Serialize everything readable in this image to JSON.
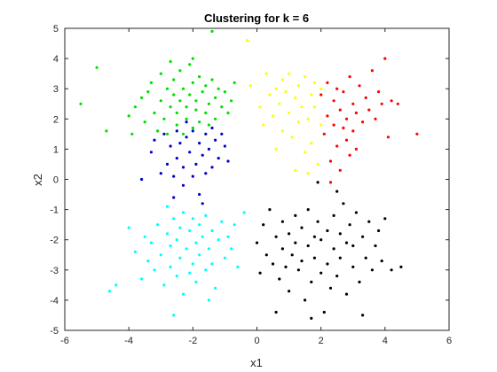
{
  "chart_data": {
    "type": "scatter",
    "title": "Clustering for k = 6",
    "xlabel": "x1",
    "ylabel": "x2",
    "xlim": [
      -6,
      6
    ],
    "ylim": [
      -5,
      5
    ],
    "xticks": [
      "-6",
      "-4",
      "-2",
      "0",
      "2",
      "4",
      "6"
    ],
    "yticks": [
      "-5",
      "-4",
      "-3",
      "-2",
      "-1",
      "0",
      "1",
      "2",
      "3",
      "4",
      "5"
    ],
    "grid": false,
    "legend": "none",
    "series": [
      {
        "color": "#00dd00",
        "points": [
          [
            -5.5,
            2.5
          ],
          [
            -5.0,
            3.7
          ],
          [
            -4.7,
            1.6
          ],
          [
            -4.0,
            2.1
          ],
          [
            -3.8,
            2.4
          ],
          [
            -3.6,
            2.7
          ],
          [
            -3.5,
            1.9
          ],
          [
            -3.4,
            2.9
          ],
          [
            -3.3,
            3.2
          ],
          [
            -3.2,
            2.2
          ],
          [
            -3.1,
            1.6
          ],
          [
            -3.0,
            2.6
          ],
          [
            -3.0,
            3.5
          ],
          [
            -2.9,
            2.0
          ],
          [
            -2.8,
            3.0
          ],
          [
            -2.8,
            1.5
          ],
          [
            -2.7,
            2.4
          ],
          [
            -2.6,
            3.3
          ],
          [
            -2.6,
            2.8
          ],
          [
            -2.5,
            1.8
          ],
          [
            -2.5,
            2.2
          ],
          [
            -2.4,
            3.6
          ],
          [
            -2.4,
            2.6
          ],
          [
            -2.3,
            1.5
          ],
          [
            -2.3,
            3.0
          ],
          [
            -2.2,
            2.0
          ],
          [
            -2.2,
            2.4
          ],
          [
            -2.1,
            3.8
          ],
          [
            -2.1,
            2.8
          ],
          [
            -2.0,
            1.7
          ],
          [
            -2.0,
            3.2
          ],
          [
            -1.9,
            2.3
          ],
          [
            -1.9,
            2.6
          ],
          [
            -1.8,
            3.4
          ],
          [
            -1.8,
            1.9
          ],
          [
            -1.7,
            2.9
          ],
          [
            -1.6,
            2.2
          ],
          [
            -1.6,
            3.1
          ],
          [
            -1.5,
            2.5
          ],
          [
            -1.5,
            1.8
          ],
          [
            -1.4,
            3.3
          ],
          [
            -1.3,
            2.0
          ],
          [
            -1.3,
            2.7
          ],
          [
            -1.2,
            3.0
          ],
          [
            -1.1,
            2.4
          ],
          [
            -1.0,
            2.9
          ],
          [
            -0.9,
            2.2
          ],
          [
            -0.8,
            2.6
          ],
          [
            -0.7,
            3.2
          ],
          [
            -2.7,
            3.9
          ],
          [
            -3.9,
            1.5
          ],
          [
            -2.0,
            4.0
          ],
          [
            -1.4,
            4.9
          ]
        ]
      },
      {
        "color": "#0000cc",
        "points": [
          [
            -3.3,
            0.9
          ],
          [
            -3.2,
            1.3
          ],
          [
            -3.0,
            0.2
          ],
          [
            -2.9,
            1.5
          ],
          [
            -2.8,
            0.5
          ],
          [
            -2.7,
            1.1
          ],
          [
            -2.6,
            0.1
          ],
          [
            -2.5,
            1.6
          ],
          [
            -2.5,
            0.7
          ],
          [
            -2.4,
            1.2
          ],
          [
            -2.3,
            -0.2
          ],
          [
            -2.3,
            0.4
          ],
          [
            -2.2,
            1.4
          ],
          [
            -2.1,
            0.9
          ],
          [
            -2.0,
            0.1
          ],
          [
            -2.0,
            1.6
          ],
          [
            -1.9,
            0.5
          ],
          [
            -1.8,
            1.2
          ],
          [
            -1.8,
            -0.5
          ],
          [
            -1.7,
            0.8
          ],
          [
            -1.6,
            1.5
          ],
          [
            -1.6,
            0.2
          ],
          [
            -1.5,
            1.0
          ],
          [
            -1.4,
            1.7
          ],
          [
            -1.4,
            0.4
          ],
          [
            -1.3,
            1.3
          ],
          [
            -1.2,
            0.7
          ],
          [
            -1.1,
            1.5
          ],
          [
            -1.0,
            1.1
          ],
          [
            -0.9,
            0.6
          ],
          [
            -2.6,
            -0.6
          ],
          [
            -1.7,
            -0.8
          ],
          [
            -3.6,
            0.0
          ],
          [
            -2.2,
            1.9
          ]
        ]
      },
      {
        "color": "#ffff00",
        "points": [
          [
            -0.3,
            4.6
          ],
          [
            -0.2,
            3.1
          ],
          [
            0.1,
            2.4
          ],
          [
            0.2,
            1.8
          ],
          [
            0.3,
            3.5
          ],
          [
            0.4,
            2.8
          ],
          [
            0.5,
            2.1
          ],
          [
            0.6,
            3.0
          ],
          [
            0.7,
            2.5
          ],
          [
            0.8,
            3.3
          ],
          [
            0.8,
            1.6
          ],
          [
            0.9,
            2.9
          ],
          [
            1.0,
            2.2
          ],
          [
            1.0,
            3.5
          ],
          [
            1.1,
            1.4
          ],
          [
            1.2,
            2.7
          ],
          [
            1.3,
            3.1
          ],
          [
            1.3,
            1.9
          ],
          [
            1.4,
            2.4
          ],
          [
            1.5,
            0.9
          ],
          [
            1.5,
            3.4
          ],
          [
            1.6,
            2.0
          ],
          [
            1.7,
            2.8
          ],
          [
            1.7,
            1.2
          ],
          [
            1.8,
            3.2
          ],
          [
            1.8,
            2.4
          ],
          [
            1.9,
            0.5
          ],
          [
            2.0,
            1.8
          ],
          [
            2.0,
            3.0
          ],
          [
            1.2,
            0.3
          ],
          [
            0.6,
            1.0
          ],
          [
            1.6,
            0.2
          ]
        ]
      },
      {
        "color": "#ff0000",
        "points": [
          [
            2.0,
            2.8
          ],
          [
            2.1,
            1.5
          ],
          [
            2.2,
            3.2
          ],
          [
            2.2,
            2.1
          ],
          [
            2.3,
            0.6
          ],
          [
            2.4,
            2.6
          ],
          [
            2.4,
            1.8
          ],
          [
            2.5,
            3.0
          ],
          [
            2.5,
            1.1
          ],
          [
            2.6,
            2.3
          ],
          [
            2.6,
            0.3
          ],
          [
            2.7,
            1.7
          ],
          [
            2.7,
            2.9
          ],
          [
            2.8,
            1.3
          ],
          [
            2.8,
            2.0
          ],
          [
            2.9,
            3.4
          ],
          [
            2.9,
            0.8
          ],
          [
            3.0,
            2.5
          ],
          [
            3.0,
            1.6
          ],
          [
            3.1,
            2.2
          ],
          [
            3.2,
            3.1
          ],
          [
            3.3,
            1.9
          ],
          [
            3.4,
            2.7
          ],
          [
            3.5,
            2.3
          ],
          [
            3.6,
            3.6
          ],
          [
            3.7,
            2.0
          ],
          [
            3.8,
            2.9
          ],
          [
            3.9,
            2.5
          ],
          [
            4.0,
            4.0
          ],
          [
            4.1,
            1.4
          ],
          [
            4.2,
            2.6
          ],
          [
            4.4,
            2.5
          ],
          [
            5.0,
            1.5
          ],
          [
            2.3,
            -0.1
          ],
          [
            3.1,
            1.0
          ]
        ]
      },
      {
        "color": "#00ffff",
        "points": [
          [
            -4.6,
            -3.7
          ],
          [
            -4.4,
            -3.5
          ],
          [
            -4.0,
            -1.6
          ],
          [
            -3.8,
            -2.4
          ],
          [
            -3.6,
            -3.3
          ],
          [
            -3.5,
            -1.9
          ],
          [
            -3.4,
            -2.7
          ],
          [
            -3.3,
            -2.1
          ],
          [
            -3.2,
            -3.0
          ],
          [
            -3.1,
            -1.5
          ],
          [
            -3.0,
            -2.5
          ],
          [
            -2.9,
            -3.5
          ],
          [
            -2.8,
            -1.8
          ],
          [
            -2.7,
            -2.2
          ],
          [
            -2.7,
            -2.9
          ],
          [
            -2.6,
            -1.3
          ],
          [
            -2.5,
            -3.2
          ],
          [
            -2.5,
            -2.0
          ],
          [
            -2.4,
            -1.6
          ],
          [
            -2.4,
            -2.6
          ],
          [
            -2.3,
            -3.8
          ],
          [
            -2.3,
            -1.1
          ],
          [
            -2.2,
            -2.3
          ],
          [
            -2.1,
            -3.1
          ],
          [
            -2.1,
            -1.7
          ],
          [
            -2.0,
            -2.8
          ],
          [
            -2.0,
            -1.3
          ],
          [
            -1.9,
            -2.1
          ],
          [
            -1.9,
            -3.4
          ],
          [
            -1.8,
            -1.5
          ],
          [
            -1.8,
            -2.5
          ],
          [
            -1.7,
            -1.9
          ],
          [
            -1.6,
            -3.0
          ],
          [
            -1.6,
            -1.2
          ],
          [
            -1.5,
            -2.3
          ],
          [
            -1.4,
            -1.7
          ],
          [
            -1.4,
            -2.8
          ],
          [
            -1.3,
            -3.6
          ],
          [
            -1.2,
            -2.0
          ],
          [
            -1.1,
            -1.4
          ],
          [
            -1.0,
            -2.6
          ],
          [
            -0.9,
            -1.9
          ],
          [
            -0.8,
            -2.3
          ],
          [
            -0.7,
            -1.5
          ],
          [
            -0.6,
            -2.9
          ],
          [
            -2.6,
            -4.5
          ],
          [
            -1.5,
            -4.0
          ],
          [
            -0.4,
            -1.1
          ],
          [
            -2.8,
            -0.9
          ]
        ]
      },
      {
        "color": "#000000",
        "points": [
          [
            0.0,
            -2.1
          ],
          [
            0.1,
            -3.1
          ],
          [
            0.2,
            -1.5
          ],
          [
            0.3,
            -2.5
          ],
          [
            0.4,
            -1.0
          ],
          [
            0.5,
            -2.8
          ],
          [
            0.6,
            -1.9
          ],
          [
            0.7,
            -3.3
          ],
          [
            0.8,
            -2.3
          ],
          [
            0.8,
            -1.4
          ],
          [
            0.9,
            -2.9
          ],
          [
            1.0,
            -1.8
          ],
          [
            1.0,
            -3.7
          ],
          [
            1.1,
            -2.5
          ],
          [
            1.2,
            -1.2
          ],
          [
            1.2,
            -2.1
          ],
          [
            1.3,
            -3.0
          ],
          [
            1.4,
            -1.6
          ],
          [
            1.4,
            -2.7
          ],
          [
            1.5,
            -4.0
          ],
          [
            1.6,
            -2.2
          ],
          [
            1.6,
            -1.0
          ],
          [
            1.7,
            -3.4
          ],
          [
            1.8,
            -1.9
          ],
          [
            1.8,
            -2.6
          ],
          [
            1.9,
            -1.4
          ],
          [
            2.0,
            -3.1
          ],
          [
            2.0,
            -2.0
          ],
          [
            2.1,
            -4.4
          ],
          [
            2.2,
            -1.7
          ],
          [
            2.2,
            -2.8
          ],
          [
            2.3,
            -3.6
          ],
          [
            2.4,
            -1.2
          ],
          [
            2.4,
            -2.3
          ],
          [
            2.5,
            -3.2
          ],
          [
            2.6,
            -1.8
          ],
          [
            2.6,
            -2.6
          ],
          [
            2.7,
            -0.8
          ],
          [
            2.8,
            -2.1
          ],
          [
            2.8,
            -3.8
          ],
          [
            2.9,
            -1.5
          ],
          [
            3.0,
            -2.9
          ],
          [
            3.0,
            -2.2
          ],
          [
            3.1,
            -1.1
          ],
          [
            3.2,
            -3.4
          ],
          [
            3.3,
            -1.9
          ],
          [
            3.4,
            -2.6
          ],
          [
            3.5,
            -1.4
          ],
          [
            3.6,
            -3.0
          ],
          [
            3.7,
            -2.2
          ],
          [
            3.8,
            -1.7
          ],
          [
            3.9,
            -2.7
          ],
          [
            4.0,
            -1.3
          ],
          [
            4.2,
            -3.0
          ],
          [
            4.5,
            -2.9
          ],
          [
            0.6,
            -4.4
          ],
          [
            1.7,
            -4.6
          ],
          [
            2.5,
            -0.4
          ],
          [
            3.3,
            -4.5
          ],
          [
            1.9,
            -0.1
          ]
        ]
      }
    ]
  }
}
